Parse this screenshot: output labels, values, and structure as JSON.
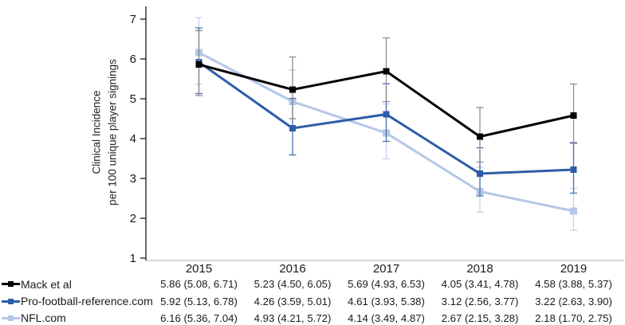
{
  "chart_data": {
    "type": "line",
    "title": "",
    "ylabel": [
      "Clinical Incidence",
      "per 100 unique player signings"
    ],
    "xlabel": "",
    "categories": [
      "2015",
      "2016",
      "2017",
      "2018",
      "2019"
    ],
    "ylim": [
      1,
      7
    ],
    "yticks": [
      "1",
      "2",
      "3",
      "4",
      "5",
      "6",
      "7"
    ],
    "grid": false,
    "legend_position": "bottom-left",
    "error_bars": "95% CI shown as whiskers with caps",
    "series": [
      {
        "name": "Mack et al",
        "color": "#000000",
        "error_color": "#8f8f8f",
        "values": [
          5.86,
          5.23,
          5.69,
          4.05,
          4.58
        ],
        "ci_low": [
          5.08,
          4.5,
          4.93,
          3.41,
          3.88
        ],
        "ci_high": [
          6.71,
          6.05,
          6.53,
          4.78,
          5.37
        ],
        "cells": [
          "5.86 (5.08, 6.71)",
          "5.23 (4.50, 6.05)",
          "5.69 (4.93, 6.53)",
          "4.05 (3.41, 4.78)",
          "4.58 (3.88, 5.37)"
        ]
      },
      {
        "name": "Pro-football-reference.com",
        "color": "#2e5ca9",
        "error_color": "#4a70b5",
        "values": [
          5.92,
          4.26,
          4.61,
          3.12,
          3.22
        ],
        "ci_low": [
          5.13,
          3.59,
          3.93,
          2.56,
          2.63
        ],
        "ci_high": [
          6.78,
          5.01,
          5.38,
          3.77,
          3.9
        ],
        "cells": [
          "5.92 (5.13, 6.78)",
          "4.26 (3.59, 5.01)",
          "4.61 (3.93, 5.38)",
          "3.12 (2.56, 3.77)",
          "3.22 (2.63, 3.90)"
        ]
      },
      {
        "name": "NFL.com",
        "color": "#b4c7e7",
        "error_color": "#c3d2ec",
        "values": [
          6.16,
          4.93,
          4.14,
          2.67,
          2.18
        ],
        "ci_low": [
          5.36,
          4.21,
          3.49,
          2.15,
          1.7
        ],
        "ci_high": [
          7.04,
          5.72,
          4.87,
          3.28,
          2.75
        ],
        "cells": [
          "6.16 (5.36, 7.04)",
          "4.93 (4.21, 5.72)",
          "4.14 (3.49, 4.87)",
          "2.67 (2.15, 3.28)",
          "2.18 (1.70, 2.75)"
        ]
      }
    ]
  }
}
